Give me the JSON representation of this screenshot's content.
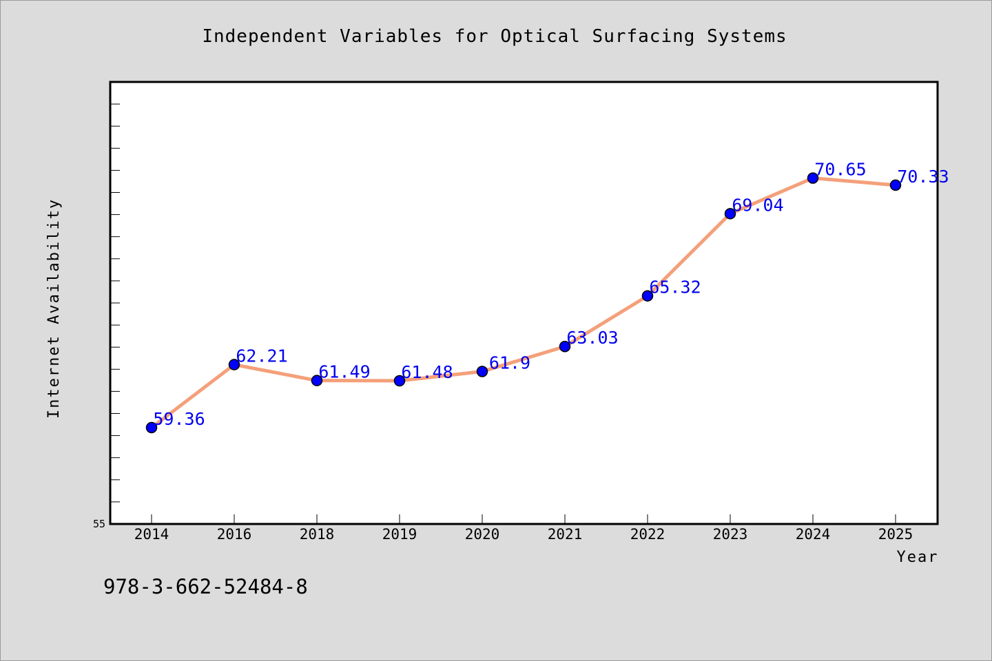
{
  "chart_data": {
    "type": "line",
    "title": "Independent Variables for Optical Surfacing Systems",
    "xlabel": "Year",
    "ylabel": "Internet Availability",
    "categories": [
      "2014",
      "2016",
      "2018",
      "2019",
      "2020",
      "2021",
      "2022",
      "2023",
      "2024",
      "2025"
    ],
    "series": [
      {
        "values": [
          59.36,
          62.21,
          61.49,
          61.48,
          61.9,
          63.03,
          65.32,
          69.04,
          70.65,
          70.33
        ],
        "value_labels": [
          "59.36",
          "62.21",
          "61.49",
          "61.48",
          "61.9",
          "63.03",
          "65.32",
          "69.04",
          "70.65",
          "70.33"
        ],
        "line_color": "#f4a07a",
        "marker_color": "#0000ff"
      }
    ],
    "ylim": [
      55,
      75
    ],
    "yticks_labeled": [
      "55"
    ],
    "grid": false,
    "legend": "none"
  },
  "footer": {
    "isbn": "978-3-662-52484-8"
  },
  "colors": {
    "background": "#dcdcdc",
    "plot_background": "#ffffff",
    "data_label": "#0000ee"
  }
}
